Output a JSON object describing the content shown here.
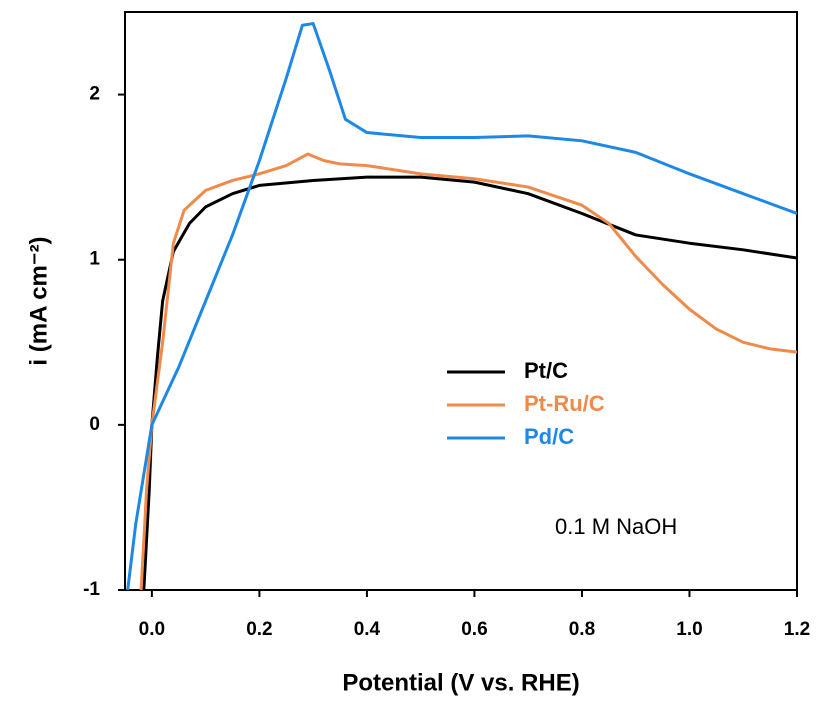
{
  "chart_data": {
    "type": "line",
    "x_label": "Potential (V vs. RHE)",
    "y_label": "i (mA cm⁻²)",
    "annotation": "0.1 M NaOH",
    "xlim": [
      -0.05,
      1.2
    ],
    "ylim": [
      -1,
      2.5
    ],
    "xticks": [
      {
        "value": 0,
        "label": "0.0"
      },
      0.2,
      0.4,
      0.6,
      0.8,
      {
        "value": 1,
        "label": "1.0"
      },
      1.2
    ],
    "yticks": [
      -1,
      0,
      1,
      2
    ],
    "grid": false,
    "legend": "right",
    "series": [
      {
        "name": "Pt/C",
        "color": "#000000",
        "x": [
          -0.015,
          -0.005,
          0,
          0.01,
          0.02,
          0.04,
          0.07,
          0.1,
          0.15,
          0.2,
          0.3,
          0.4,
          0.5,
          0.6,
          0.7,
          0.8,
          0.9,
          1.0,
          1.1,
          1.2
        ],
        "values": [
          -1,
          -0.4,
          0,
          0.4,
          0.75,
          1.05,
          1.22,
          1.32,
          1.4,
          1.45,
          1.48,
          1.5,
          1.5,
          1.47,
          1.4,
          1.28,
          1.15,
          1.1,
          1.06,
          1.01
        ]
      },
      {
        "name": "Pt-Ru/C",
        "color": "#f08a4b",
        "x": [
          -0.02,
          -0.01,
          0,
          0.02,
          0.04,
          0.06,
          0.1,
          0.15,
          0.2,
          0.25,
          0.29,
          0.32,
          0.35,
          0.4,
          0.5,
          0.6,
          0.7,
          0.8,
          0.85,
          0.9,
          0.95,
          1.0,
          1.05,
          1.1,
          1.15,
          1.2
        ],
        "values": [
          -1,
          -0.4,
          0,
          0.5,
          1.1,
          1.3,
          1.42,
          1.48,
          1.52,
          1.57,
          1.64,
          1.6,
          1.58,
          1.57,
          1.52,
          1.49,
          1.44,
          1.33,
          1.22,
          1.02,
          0.85,
          0.7,
          0.58,
          0.5,
          0.46,
          0.44
        ]
      },
      {
        "name": "Pd/C",
        "color": "#1e88e5",
        "x": [
          -0.045,
          -0.03,
          -0.01,
          0,
          0.05,
          0.1,
          0.15,
          0.2,
          0.25,
          0.28,
          0.3,
          0.33,
          0.36,
          0.4,
          0.5,
          0.6,
          0.7,
          0.8,
          0.9,
          1.0,
          1.1,
          1.2
        ],
        "values": [
          -1,
          -0.6,
          -0.2,
          0,
          0.35,
          0.75,
          1.15,
          1.6,
          2.1,
          2.42,
          2.43,
          2.15,
          1.85,
          1.77,
          1.74,
          1.74,
          1.75,
          1.72,
          1.65,
          1.52,
          1.4,
          1.28
        ]
      }
    ]
  }
}
